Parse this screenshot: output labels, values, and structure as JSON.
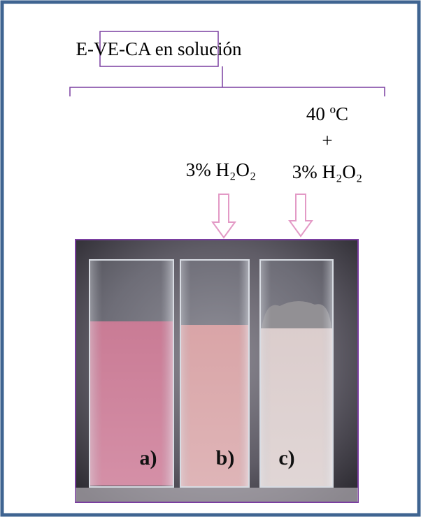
{
  "title": "E-VE-CA en solución",
  "conditions": {
    "b": "3% H₂O₂",
    "c_temp": "40 ºC",
    "c_plus": "+",
    "c_peroxide": "3% H₂O₂"
  },
  "samples": [
    "a)",
    "b)",
    "c)"
  ]
}
